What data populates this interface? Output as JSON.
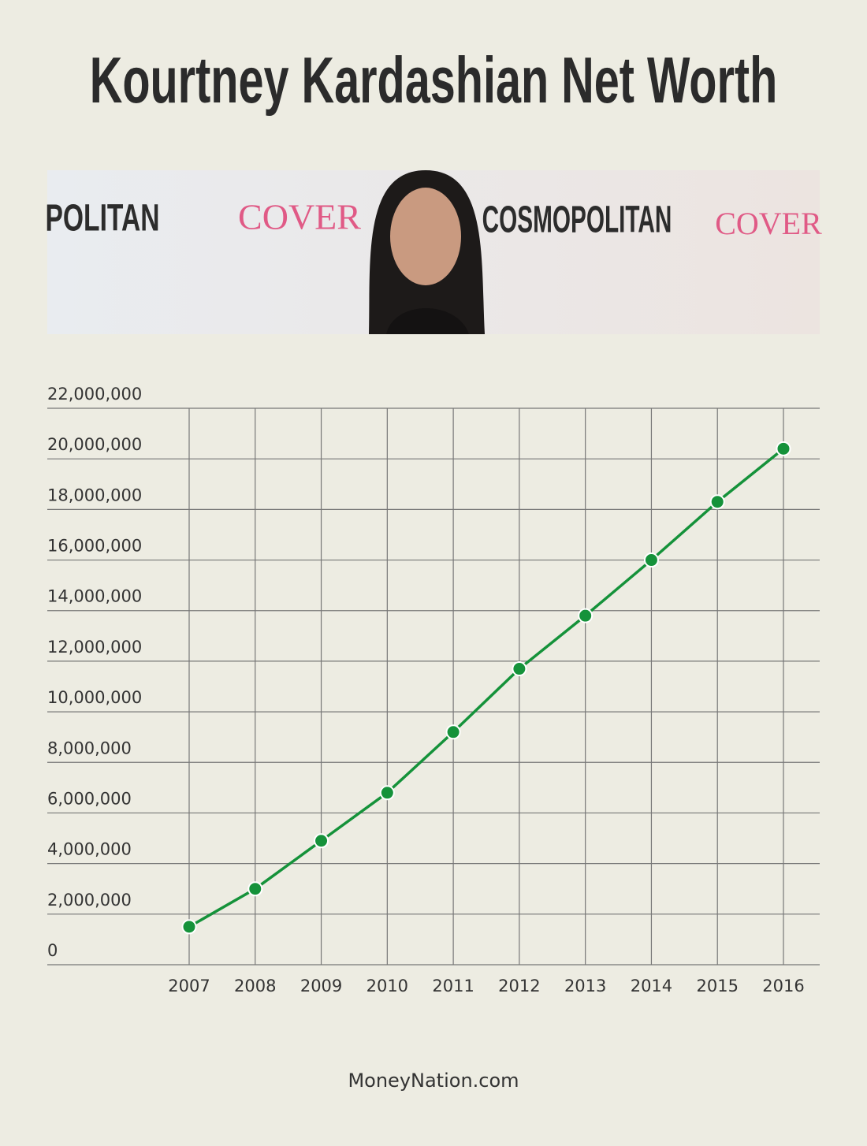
{
  "chart_data": {
    "type": "line",
    "title": "Kourtney Kardashian Net Worth",
    "categories": [
      "2007",
      "2008",
      "2009",
      "2010",
      "2011",
      "2012",
      "2013",
      "2014",
      "2015",
      "2016"
    ],
    "series": [
      {
        "name": "Net Worth",
        "color": "#15923a",
        "values": [
          1500000,
          3000000,
          4900000,
          6800000,
          9200000,
          11700000,
          13800000,
          16000000,
          18300000,
          20400000
        ]
      }
    ],
    "ylim": [
      0,
      22000000
    ],
    "yticks": [
      0,
      {
        "value": 2000000,
        "label": "2,000,000"
      },
      {
        "value": 4000000,
        "label": "4,000,000"
      },
      {
        "value": 6000000,
        "label": "6,000,000"
      },
      {
        "value": 8000000,
        "label": "8,000,000"
      },
      {
        "value": 10000000,
        "label": "10,000,000"
      },
      {
        "value": 12000000,
        "label": "12,000,000"
      },
      {
        "value": 14000000,
        "label": "14,000,000"
      },
      {
        "value": 16000000,
        "label": "16,000,000"
      },
      {
        "value": 18000000,
        "label": "18,000,000"
      },
      {
        "value": 20000000,
        "label": "20,000,000"
      },
      {
        "value": 22000000,
        "label": "22,000,000"
      }
    ],
    "grid": true,
    "source": "MoneyNation.com"
  },
  "banner": {
    "texts": [
      "POLITAN",
      "COVER",
      "COSMOPOLITAN",
      "COVER"
    ]
  }
}
